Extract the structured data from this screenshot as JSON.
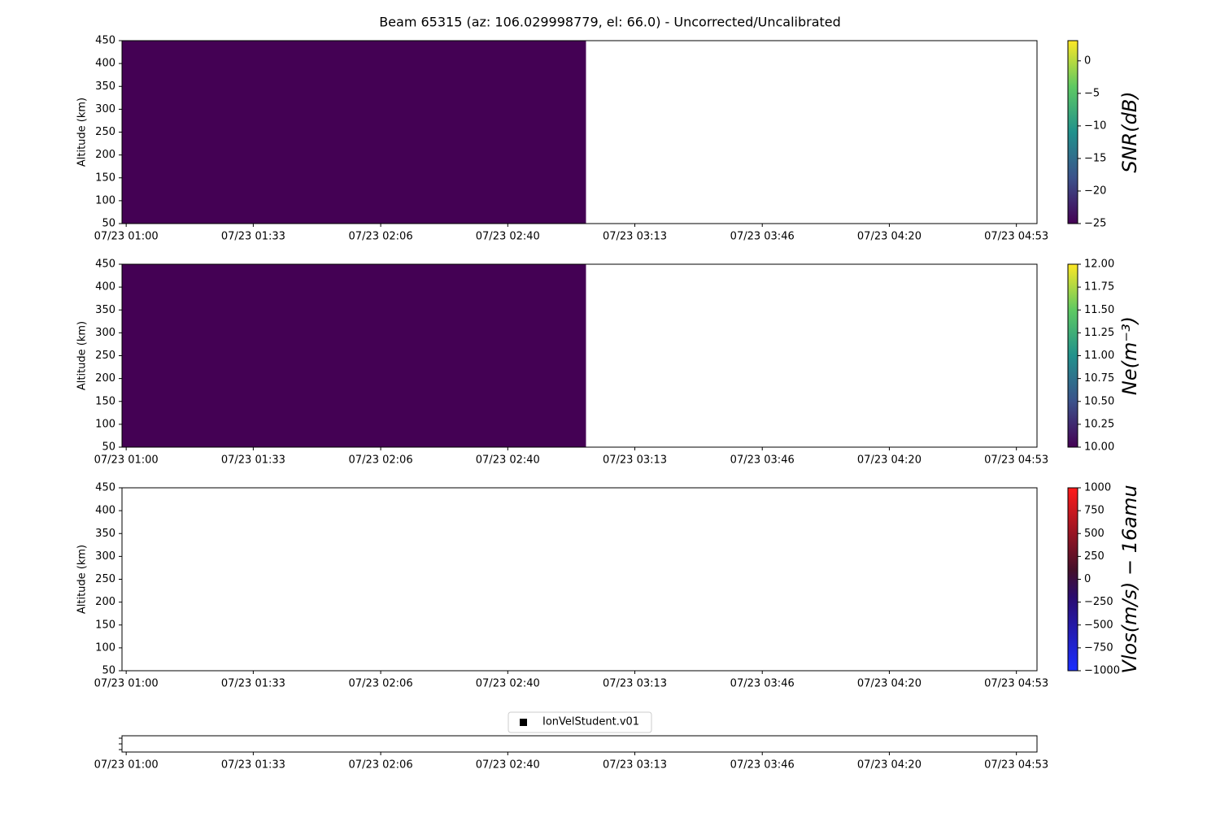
{
  "chart_data": [
    {
      "type": "heatmap",
      "title": "Beam 65315 (az: 106.029998779, el: 66.0) - Uncorrected/Uncalibrated",
      "ylabel": "Altitude (km)",
      "xlim": [
        58.9,
        298.7
      ],
      "xticks": [
        {
          "value": 60,
          "label": "07/23 01:00"
        },
        {
          "value": 93.3,
          "label": "07/23 01:33"
        },
        {
          "value": 126.7,
          "label": "07/23 02:06"
        },
        {
          "value": 160,
          "label": "07/23 02:40"
        },
        {
          "value": 193.3,
          "label": "07/23 03:13"
        },
        {
          "value": 226.7,
          "label": "07/23 03:46"
        },
        {
          "value": 260,
          "label": "07/23 04:20"
        },
        {
          "value": 293.3,
          "label": "07/23 04:53"
        }
      ],
      "ylim": [
        50,
        450
      ],
      "yticks": [
        50,
        100,
        150,
        200,
        250,
        300,
        350,
        400,
        450
      ],
      "blocks": [
        {
          "x": [
            58.9,
            180.5
          ],
          "y": [
            50,
            450
          ],
          "value": -25
        }
      ],
      "colorbar": {
        "label": "SNR(dB)",
        "colormap": "viridis",
        "clim": [
          -25,
          3.1
        ],
        "ticks": [
          {
            "value": -25,
            "label": "−25"
          },
          {
            "value": -20,
            "label": "−20"
          },
          {
            "value": -15,
            "label": "−15"
          },
          {
            "value": -10,
            "label": "−10"
          },
          {
            "value": -5,
            "label": "−5"
          },
          0
        ]
      }
    },
    {
      "type": "heatmap",
      "ylabel": "Altitude (km)",
      "xlim": [
        58.9,
        298.7
      ],
      "xticks": [
        {
          "value": 60,
          "label": "07/23 01:00"
        },
        {
          "value": 93.3,
          "label": "07/23 01:33"
        },
        {
          "value": 126.7,
          "label": "07/23 02:06"
        },
        {
          "value": 160,
          "label": "07/23 02:40"
        },
        {
          "value": 193.3,
          "label": "07/23 03:13"
        },
        {
          "value": 226.7,
          "label": "07/23 03:46"
        },
        {
          "value": 260,
          "label": "07/23 04:20"
        },
        {
          "value": 293.3,
          "label": "07/23 04:53"
        }
      ],
      "ylim": [
        50,
        450
      ],
      "yticks": [
        50,
        100,
        150,
        200,
        250,
        300,
        350,
        400,
        450
      ],
      "blocks": [
        {
          "x": [
            58.9,
            180.5
          ],
          "y": [
            50,
            450
          ],
          "value": 10
        }
      ],
      "colorbar": {
        "label": "Ne(m⁻³)",
        "colormap": "viridis",
        "clim": [
          10,
          12
        ],
        "ticks": [
          {
            "value": 10,
            "label": "10.00"
          },
          {
            "value": 10.25,
            "label": "10.25"
          },
          {
            "value": 10.5,
            "label": "10.50"
          },
          {
            "value": 10.75,
            "label": "10.75"
          },
          {
            "value": 11,
            "label": "11.00"
          },
          {
            "value": 11.25,
            "label": "11.25"
          },
          {
            "value": 11.5,
            "label": "11.50"
          },
          {
            "value": 11.75,
            "label": "11.75"
          },
          {
            "value": 12,
            "label": "12.00"
          }
        ]
      }
    },
    {
      "type": "heatmap",
      "ylabel": "Altitude (km)",
      "xlim": [
        58.9,
        298.7
      ],
      "xticks": [
        {
          "value": 60,
          "label": "07/23 01:00"
        },
        {
          "value": 93.3,
          "label": "07/23 01:33"
        },
        {
          "value": 126.7,
          "label": "07/23 02:06"
        },
        {
          "value": 160,
          "label": "07/23 02:40"
        },
        {
          "value": 193.3,
          "label": "07/23 03:13"
        },
        {
          "value": 226.7,
          "label": "07/23 03:46"
        },
        {
          "value": 260,
          "label": "07/23 04:20"
        },
        {
          "value": 293.3,
          "label": "07/23 04:53"
        }
      ],
      "ylim": [
        50,
        450
      ],
      "yticks": [
        50,
        100,
        150,
        200,
        250,
        300,
        350,
        400,
        450
      ],
      "blocks": [],
      "colorbar": {
        "label": "Vlos(m/s) − 16amu",
        "colormap": "bluered",
        "clim": [
          -1000,
          1000
        ],
        "ticks": [
          {
            "value": -1000,
            "label": "−1000"
          },
          {
            "value": -750,
            "label": "−750"
          },
          {
            "value": -500,
            "label": "−500"
          },
          {
            "value": -250,
            "label": "−250"
          },
          0,
          250,
          500,
          750,
          1000
        ]
      }
    },
    {
      "type": "scatter",
      "xlim": [
        58.9,
        298.7
      ],
      "xticks": [
        {
          "value": 60,
          "label": "07/23 01:00"
        },
        {
          "value": 93.3,
          "label": "07/23 01:33"
        },
        {
          "value": 126.7,
          "label": "07/23 02:06"
        },
        {
          "value": 160,
          "label": "07/23 02:40"
        },
        {
          "value": 193.3,
          "label": "07/23 03:13"
        },
        {
          "value": 226.7,
          "label": "07/23 03:46"
        },
        {
          "value": 260,
          "label": "07/23 04:20"
        },
        {
          "value": 293.3,
          "label": "07/23 04:53"
        }
      ],
      "legend": "upper center",
      "series": [
        {
          "name": "IonVelStudent.v01",
          "color": "#000000"
        }
      ]
    }
  ]
}
